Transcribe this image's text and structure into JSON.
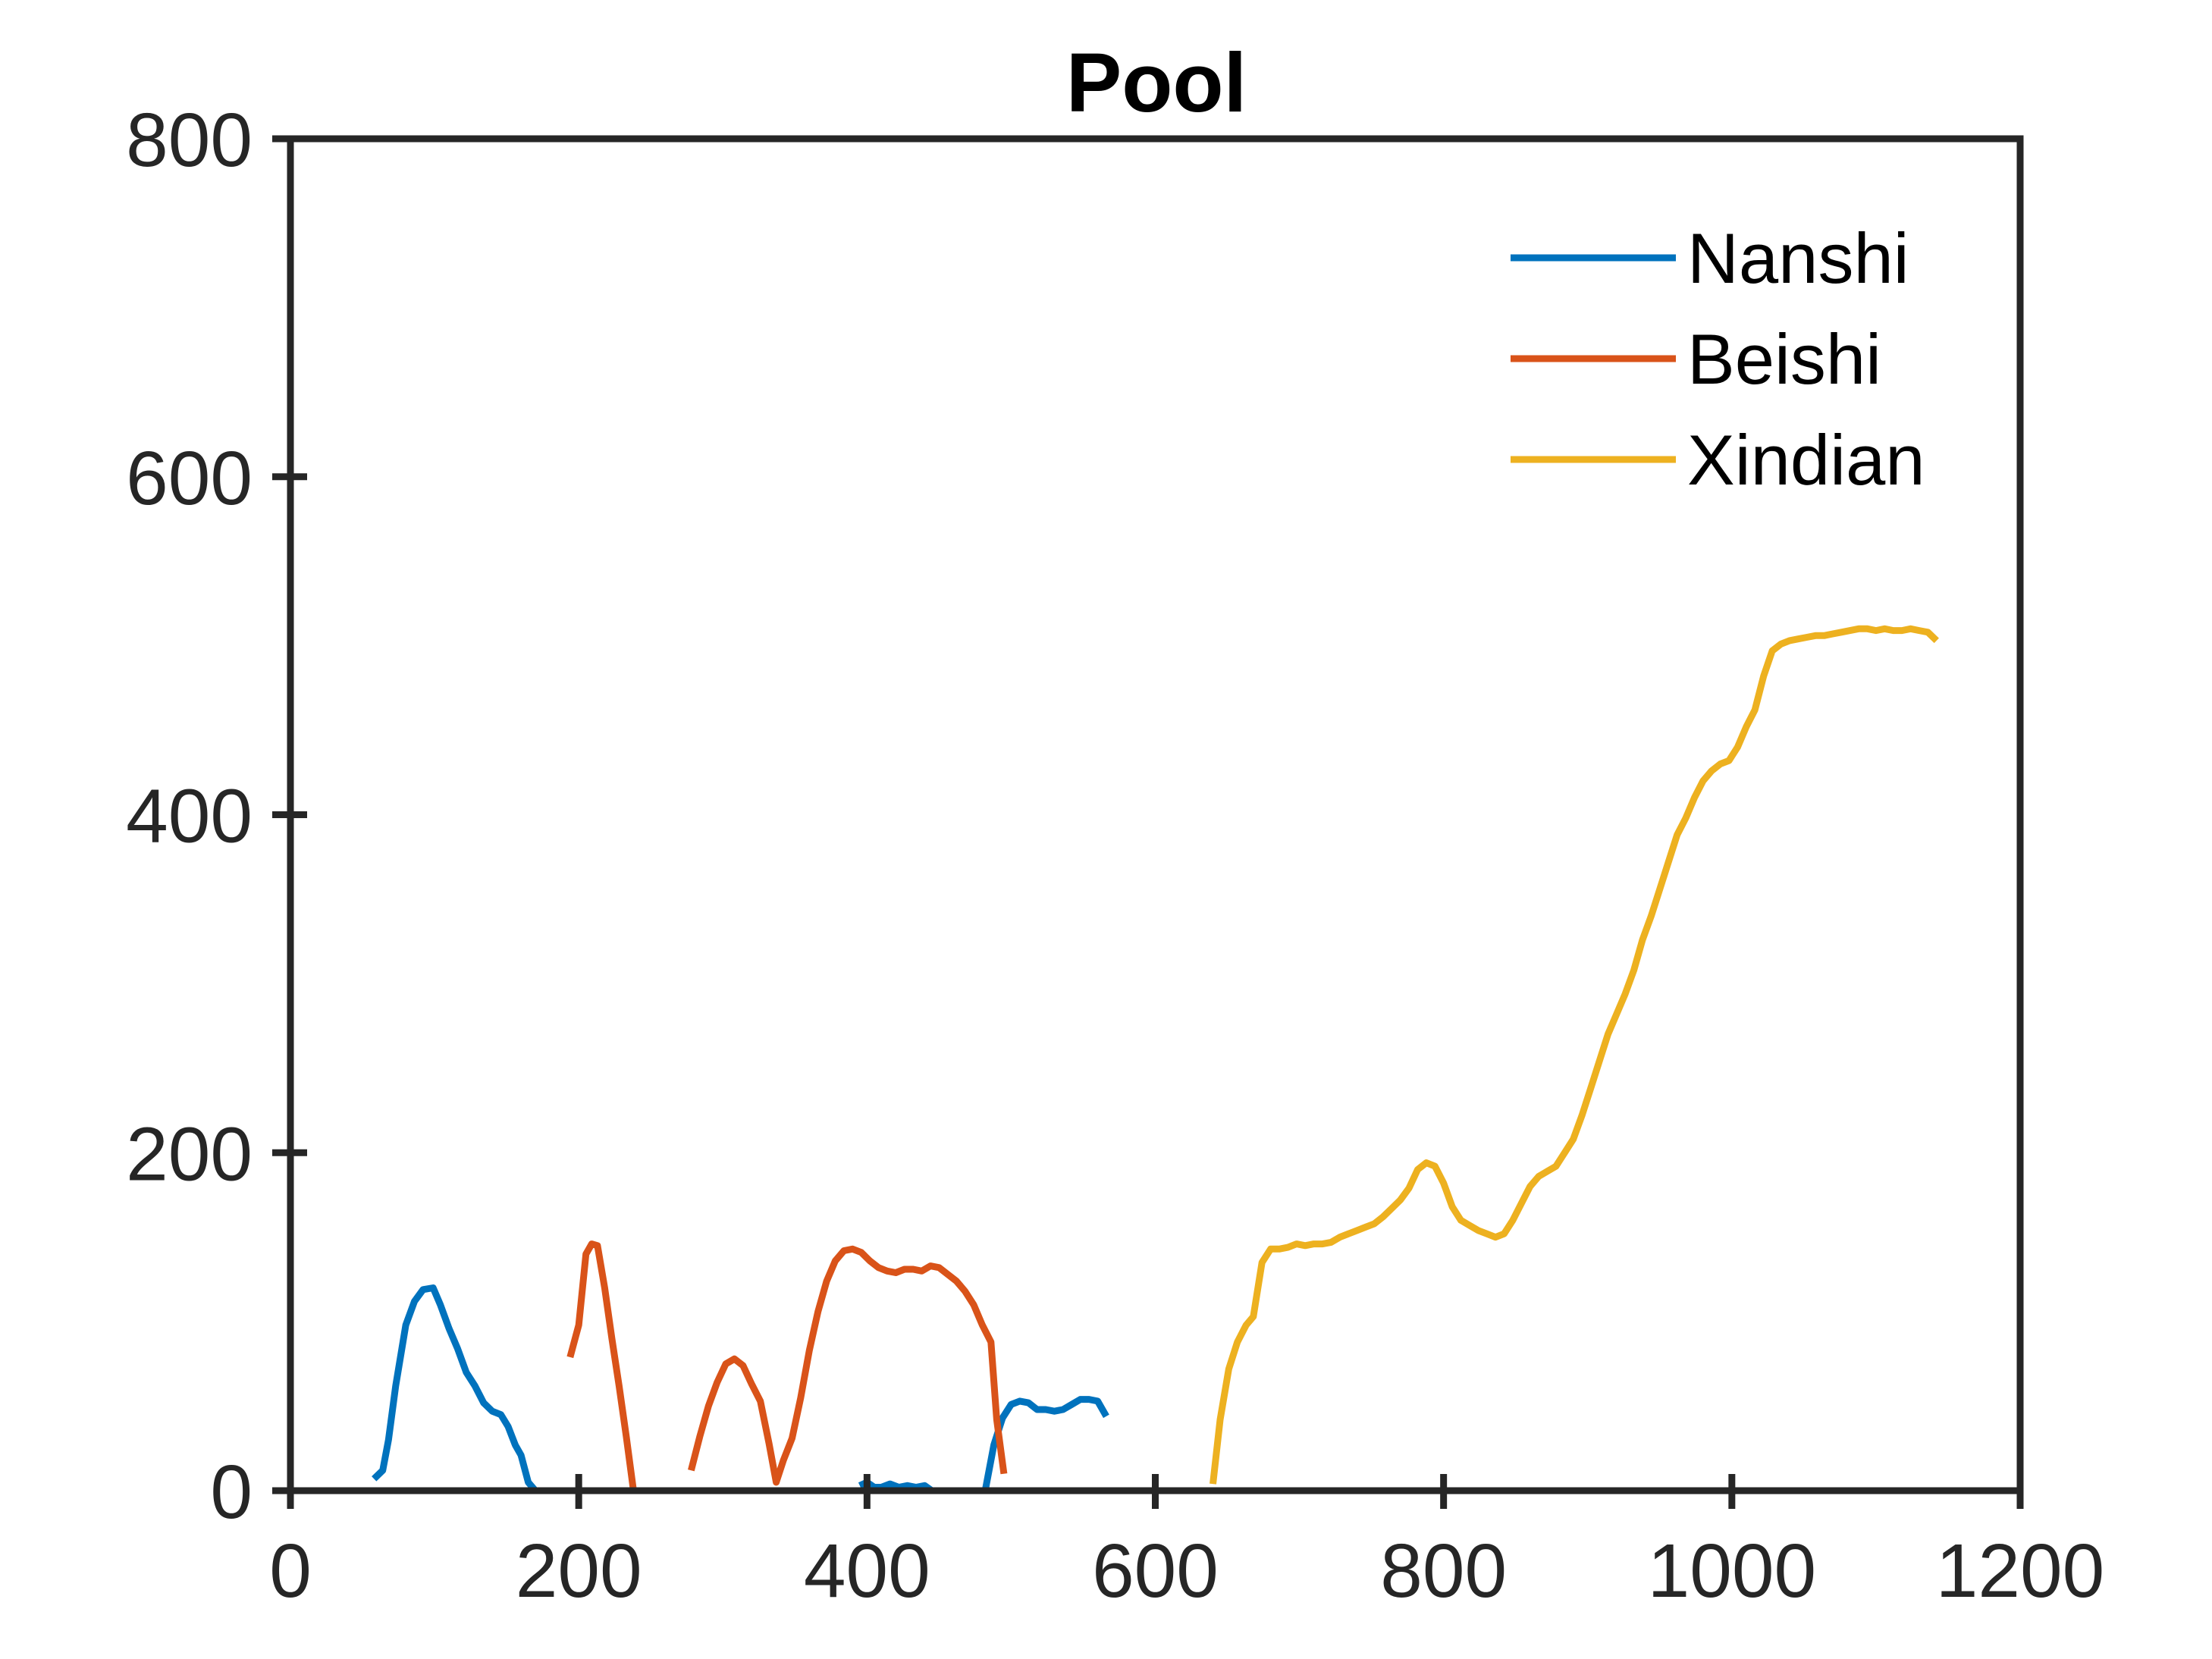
{
  "chart_data": {
    "type": "line",
    "title": "Pool",
    "xlabel": "",
    "ylabel": "",
    "xlim": [
      0,
      1200
    ],
    "ylim": [
      0,
      800
    ],
    "xticks": [
      0,
      200,
      400,
      600,
      800,
      1000,
      1200
    ],
    "yticks": [
      0,
      200,
      400,
      600,
      800
    ],
    "xtick_labels": [
      "0",
      "200",
      "400",
      "600",
      "800",
      "1000",
      "1200"
    ],
    "ytick_labels": [
      "0",
      "200",
      "400",
      "600",
      "800"
    ],
    "grid": false,
    "legend_position": "top-right",
    "series": [
      {
        "name": "Nanshi",
        "color": "#0072BD",
        "segments": [
          [
            [
              58,
              7
            ],
            [
              64,
              12
            ],
            [
              68,
              30
            ],
            [
              73,
              62
            ],
            [
              80,
              98
            ],
            [
              86,
              112
            ],
            [
              92,
              119
            ],
            [
              99,
              120
            ],
            [
              104,
              110
            ],
            [
              110,
              96
            ],
            [
              116,
              84
            ],
            [
              122,
              70
            ],
            [
              128,
              62
            ],
            [
              134,
              52
            ],
            [
              140,
              47
            ],
            [
              146,
              45
            ],
            [
              151,
              38
            ],
            [
              156,
              27
            ],
            [
              160,
              21
            ],
            [
              165,
              5
            ],
            [
              170,
              0
            ]
          ],
          [
            [
              395,
              3
            ],
            [
              400,
              5
            ],
            [
              405,
              2
            ],
            [
              410,
              2
            ],
            [
              416,
              4
            ],
            [
              422,
              2
            ],
            [
              428,
              3
            ],
            [
              434,
              2
            ],
            [
              440,
              3
            ],
            [
              445,
              0
            ]
          ],
          [
            [
              482,
              0
            ],
            [
              488,
              27
            ],
            [
              494,
              43
            ],
            [
              500,
              51
            ],
            [
              506,
              53
            ],
            [
              512,
              52
            ],
            [
              518,
              48
            ],
            [
              524,
              48
            ],
            [
              530,
              47
            ],
            [
              536,
              48
            ],
            [
              542,
              51
            ],
            [
              548,
              54
            ],
            [
              554,
              54
            ],
            [
              560,
              53
            ],
            [
              566,
              44
            ]
          ]
        ]
      },
      {
        "name": "Beishi",
        "color": "#D95319",
        "segments": [
          [
            [
              194,
              79
            ],
            [
              200,
              98
            ],
            [
              205,
              140
            ],
            [
              209,
              146
            ],
            [
              213,
              145
            ],
            [
              218,
              120
            ],
            [
              223,
              90
            ],
            [
              228,
              62
            ],
            [
              233,
              32
            ],
            [
              238,
              0
            ]
          ],
          [
            [
              278,
              12
            ],
            [
              284,
              32
            ],
            [
              290,
              50
            ],
            [
              296,
              64
            ],
            [
              302,
              75
            ],
            [
              308,
              78
            ],
            [
              314,
              74
            ],
            [
              320,
              63
            ],
            [
              326,
              53
            ],
            [
              332,
              28
            ],
            [
              337,
              5
            ],
            [
              342,
              18
            ],
            [
              348,
              31
            ],
            [
              354,
              55
            ],
            [
              360,
              83
            ],
            [
              366,
              106
            ],
            [
              372,
              124
            ],
            [
              378,
              136
            ],
            [
              384,
              142
            ],
            [
              390,
              143
            ],
            [
              396,
              141
            ],
            [
              402,
              136
            ],
            [
              408,
              132
            ],
            [
              414,
              130
            ],
            [
              420,
              129
            ],
            [
              426,
              131
            ],
            [
              432,
              131
            ],
            [
              438,
              130
            ],
            [
              444,
              133
            ],
            [
              450,
              132
            ],
            [
              456,
              128
            ],
            [
              462,
              124
            ],
            [
              468,
              118
            ],
            [
              474,
              110
            ],
            [
              480,
              98
            ],
            [
              486,
              88
            ],
            [
              490,
              42
            ],
            [
              495,
              10
            ]
          ]
        ]
      },
      {
        "name": "Xindian",
        "color": "#EDB120",
        "segments": [
          [
            [
              640,
              4
            ],
            [
              645,
              42
            ],
            [
              651,
              72
            ],
            [
              657,
              88
            ],
            [
              663,
              98
            ],
            [
              668,
              103
            ],
            [
              674,
              135
            ],
            [
              680,
              143
            ],
            [
              686,
              143
            ],
            [
              692,
              144
            ],
            [
              698,
              146
            ],
            [
              704,
              145
            ],
            [
              710,
              146
            ],
            [
              716,
              146
            ],
            [
              722,
              147
            ],
            [
              728,
              150
            ],
            [
              734,
              152
            ],
            [
              740,
              154
            ],
            [
              746,
              156
            ],
            [
              752,
              158
            ],
            [
              758,
              162
            ],
            [
              764,
              167
            ],
            [
              770,
              172
            ],
            [
              776,
              179
            ],
            [
              782,
              190
            ],
            [
              788,
              194
            ],
            [
              794,
              192
            ],
            [
              800,
              182
            ],
            [
              806,
              168
            ],
            [
              812,
              160
            ],
            [
              818,
              157
            ],
            [
              824,
              154
            ],
            [
              830,
              152
            ],
            [
              836,
              150
            ],
            [
              842,
              152
            ],
            [
              848,
              160
            ],
            [
              854,
              170
            ],
            [
              860,
              180
            ],
            [
              866,
              186
            ],
            [
              872,
              189
            ],
            [
              878,
              192
            ],
            [
              884,
              200
            ],
            [
              890,
              208
            ],
            [
              896,
              222
            ],
            [
              902,
              238
            ],
            [
              908,
              254
            ],
            [
              914,
              270
            ],
            [
              920,
              282
            ],
            [
              926,
              294
            ],
            [
              932,
              308
            ],
            [
              938,
              326
            ],
            [
              944,
              340
            ],
            [
              950,
              356
            ],
            [
              956,
              372
            ],
            [
              962,
              388
            ],
            [
              968,
              398
            ],
            [
              974,
              410
            ],
            [
              980,
              420
            ],
            [
              986,
              426
            ],
            [
              992,
              430
            ],
            [
              998,
              432
            ],
            [
              1004,
              440
            ],
            [
              1010,
              452
            ],
            [
              1016,
              462
            ],
            [
              1022,
              482
            ],
            [
              1028,
              497
            ],
            [
              1034,
              501
            ],
            [
              1040,
              503
            ],
            [
              1046,
              504
            ],
            [
              1052,
              505
            ],
            [
              1058,
              506
            ],
            [
              1064,
              506
            ],
            [
              1070,
              507
            ],
            [
              1076,
              508
            ],
            [
              1082,
              509
            ],
            [
              1088,
              510
            ],
            [
              1094,
              510
            ],
            [
              1100,
              509
            ],
            [
              1106,
              510
            ],
            [
              1112,
              509
            ],
            [
              1118,
              509
            ],
            [
              1124,
              510
            ],
            [
              1130,
              509
            ],
            [
              1136,
              508
            ],
            [
              1142,
              503
            ]
          ]
        ]
      }
    ]
  }
}
